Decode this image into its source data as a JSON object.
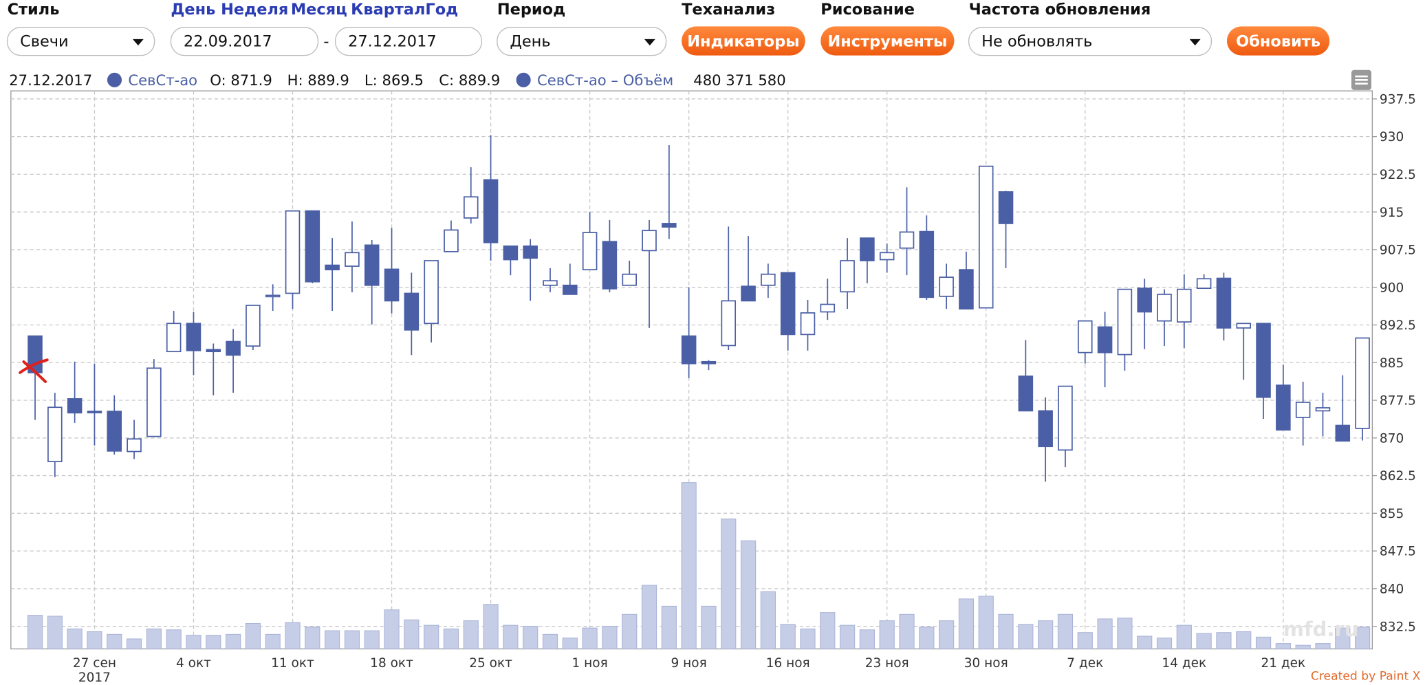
{
  "toolbar": {
    "style_label": "Стиль",
    "style_value": "Свечи",
    "periods": [
      "День",
      "Неделя",
      "Месяц",
      "Квартал",
      "Год"
    ],
    "date_from": "22.09.2017",
    "date_sep": "-",
    "date_to": "27.12.2017",
    "period_label": "Период",
    "period_value": "День",
    "ta_label": "Теханализ",
    "ta_button": "Индикаторы",
    "draw_label": "Рисование",
    "draw_button": "Инструменты",
    "refresh_label": "Частота обновления",
    "refresh_value": "Не обновлять",
    "refresh_button": "Обновить"
  },
  "legend": {
    "date": "27.12.2017",
    "series": "СевСт-ао",
    "items": [
      {
        "label": "O:",
        "value": 871.9
      },
      {
        "label": "H:",
        "value": 889.9
      },
      {
        "label": "L:",
        "value": 869.5
      },
      {
        "label": "C:",
        "value": 889.9
      }
    ],
    "volume_series": "СевСт-ао – Объём",
    "volume": "480 371 580"
  },
  "watermark": "mfd.ru",
  "credit": "Created by Paint X",
  "chart_data": {
    "type": "candlestick",
    "color": "#4a5fa5",
    "grid": true,
    "categories": [
      null,
      null,
      null,
      "27 сен",
      null,
      null,
      null,
      null,
      "4 окт",
      null,
      null,
      null,
      null,
      "11 окт",
      null,
      null,
      null,
      null,
      "18 окт",
      null,
      null,
      null,
      null,
      "25 окт",
      null,
      null,
      null,
      null,
      "1 ноя",
      null,
      null,
      null,
      null,
      "9 ноя",
      null,
      null,
      null,
      null,
      "16 ноя",
      null,
      null,
      null,
      null,
      "23 ноя",
      null,
      null,
      null,
      null,
      "30 ноя",
      null,
      null,
      null,
      null,
      "7 дек",
      null,
      null,
      null,
      null,
      "14 дек",
      null,
      null,
      null,
      null,
      "21 дек",
      null,
      null,
      null,
      null
    ],
    "year_label": "2017",
    "open": [
      890.3,
      865.3,
      877.8,
      875.3,
      875.3,
      867.3,
      870.3,
      887.2,
      892.8,
      887.6,
      889.2,
      888.3,
      898.2,
      898.8,
      915.2,
      904.4,
      904.2,
      908.4,
      903.6,
      898.8,
      892.8,
      907.1,
      913.8,
      921.4,
      908.2,
      908.2,
      900.4,
      900.4,
      903.5,
      909.1,
      900.4,
      907.3,
      912.7,
      890.3,
      885.2,
      888.4,
      900.2,
      900.4,
      902.9,
      890.6,
      895.1,
      899.1,
      909.8,
      905.5,
      907.8,
      911.1,
      898.2,
      903.5,
      895.9,
      919,
      882.3,
      875.4,
      867.6,
      887,
      892.1,
      886.6,
      899.8,
      893.3,
      893.1,
      899.8,
      901.8,
      891.9,
      892.8,
      880.5,
      874.1,
      875.4,
      872.5,
      871.9
    ],
    "high": [
      890.3,
      879,
      885.2,
      884.8,
      878.5,
      873.6,
      885.7,
      895.3,
      895.1,
      888.8,
      891.7,
      896.4,
      900.6,
      915.2,
      915.2,
      909.8,
      913.1,
      909.4,
      911.8,
      902.9,
      905.3,
      913.3,
      923.9,
      930.3,
      908.2,
      909.6,
      903.8,
      904.7,
      915,
      913.4,
      905.3,
      913.4,
      928.3,
      900,
      885.5,
      912.1,
      910.2,
      904.7,
      902.9,
      897.5,
      901.7,
      909.8,
      909.8,
      908.7,
      919.9,
      914.3,
      904.7,
      907.1,
      924.1,
      919.2,
      889.5,
      878.1,
      880.3,
      893.3,
      895.1,
      899.6,
      901.7,
      899.6,
      902.6,
      902.6,
      902.9,
      892.8,
      892.8,
      884.6,
      881.2,
      879,
      882.5,
      889.9
    ],
    "low": [
      873.6,
      862.2,
      873,
      868.5,
      866.7,
      865.8,
      870.3,
      887.2,
      882.5,
      878.5,
      879,
      887.5,
      895.3,
      895.7,
      900.8,
      895.3,
      899,
      892.6,
      894.8,
      886.5,
      889,
      907.1,
      912.7,
      905.3,
      902.4,
      897.3,
      899,
      898.6,
      903.5,
      899,
      900.4,
      891.9,
      909.6,
      881.9,
      883.5,
      887.5,
      897.3,
      897.9,
      887.4,
      887.4,
      893.5,
      895.7,
      900.8,
      902.9,
      902.4,
      897.5,
      895.7,
      895.7,
      895.9,
      903.8,
      875.4,
      861.3,
      864.2,
      884.8,
      880.1,
      883.4,
      887.7,
      888.3,
      887.9,
      899.8,
      889.4,
      881.6,
      873.8,
      871.6,
      868.5,
      870.3,
      869.4,
      869.5
    ],
    "close": [
      883,
      876.1,
      875,
      875.1,
      867.4,
      869.8,
      883.9,
      892.8,
      887.4,
      887.2,
      886.5,
      896.4,
      898.4,
      915.2,
      901.1,
      903.5,
      906.9,
      900.4,
      897.3,
      891.5,
      905.3,
      911.4,
      918,
      908.9,
      905.5,
      905.8,
      901.3,
      898.6,
      910.9,
      899.7,
      902.6,
      911.3,
      912,
      884.8,
      884.8,
      897.3,
      897.3,
      902.6,
      890.6,
      894.9,
      896.6,
      905.3,
      905.3,
      906.9,
      911,
      898,
      902,
      895.7,
      924.1,
      912.7,
      875.4,
      868.3,
      880.3,
      893.3,
      887,
      899.6,
      895.1,
      898.6,
      899.6,
      901.7,
      891.9,
      892.8,
      878.1,
      871.6,
      877.1,
      876,
      869.4,
      889.9
    ],
    "volume": {
      "color": "#c6cde6",
      "values": [
        740000000,
        720000000,
        440000000,
        380000000,
        320000000,
        220000000,
        440000000,
        420000000,
        300000000,
        300000000,
        320000000,
        560000000,
        320000000,
        580000000,
        480000000,
        400000000,
        400000000,
        400000000,
        860000000,
        640000000,
        520000000,
        440000000,
        620000000,
        980000000,
        520000000,
        500000000,
        320000000,
        240000000,
        460000000,
        500000000,
        760000000,
        1400000000,
        940000000,
        3660000000,
        940000000,
        2860000000,
        2380000000,
        1260000000,
        540000000,
        440000000,
        800000000,
        520000000,
        420000000,
        620000000,
        760000000,
        480000000,
        620000000,
        1100000000,
        1160000000,
        760000000,
        540000000,
        620000000,
        760000000,
        360000000,
        660000000,
        680000000,
        280000000,
        240000000,
        520000000,
        340000000,
        360000000,
        380000000,
        260000000,
        120000000,
        80000000,
        120000000,
        460000000,
        480371580
      ]
    },
    "ylim": [
      828,
      939.1
    ],
    "yticks": [
      832.5,
      840,
      847.5,
      855,
      862.5,
      870,
      877.5,
      885,
      892.5,
      900,
      907.5,
      915,
      922.5,
      930,
      937.5
    ]
  }
}
